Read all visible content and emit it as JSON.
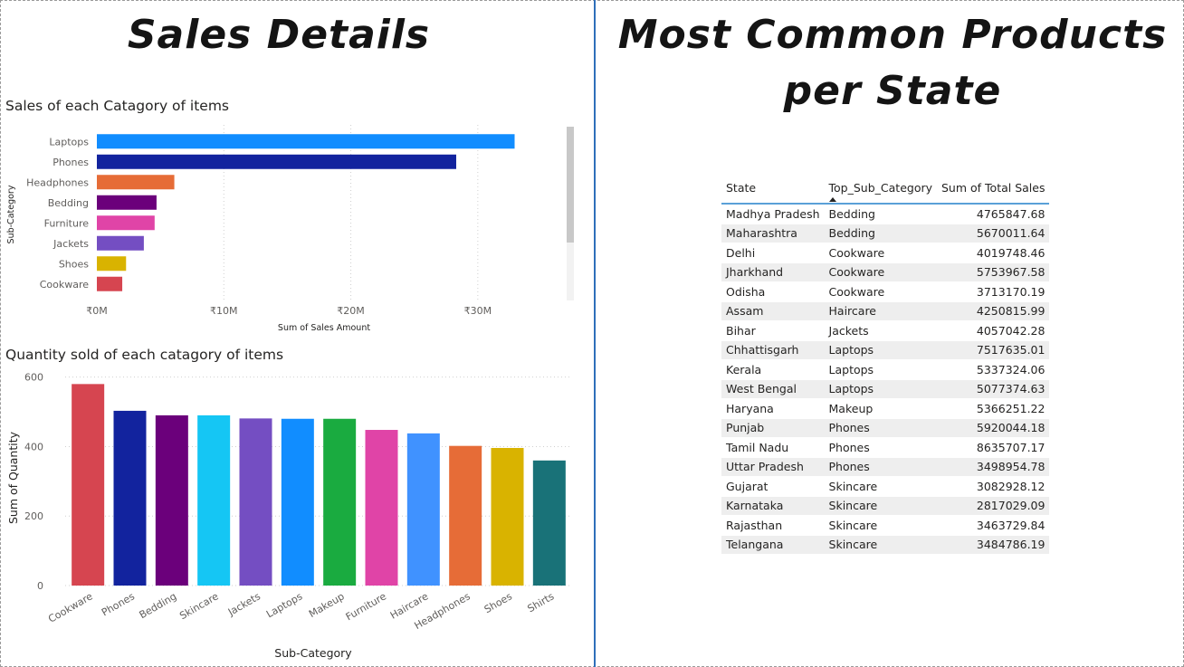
{
  "left_panel": {
    "title": "Sales Details"
  },
  "right_panel": {
    "title": "Most Common Products per State"
  },
  "chart_data": [
    {
      "type": "bar",
      "orientation": "horizontal",
      "title": "Sales of each Catagory of items",
      "xlabel": "Sum of Sales Amount",
      "ylabel": "Sub-Category",
      "categories": [
        "Laptops",
        "Phones",
        "Headphones",
        "Bedding",
        "Furniture",
        "Jackets",
        "Shoes",
        "Cookware"
      ],
      "values": [
        32900000,
        28300000,
        6100000,
        4700000,
        4550000,
        3700000,
        2300000,
        2000000
      ],
      "colors": [
        "#118DFF",
        "#12239E",
        "#E66C37",
        "#6B007B",
        "#E044A7",
        "#744EC2",
        "#D9B300",
        "#D64550"
      ],
      "xlim": [
        0,
        36000000
      ],
      "xticks": [
        0,
        10000000,
        20000000,
        30000000
      ],
      "xtick_labels": [
        "₹0M",
        "₹10M",
        "₹20M",
        "₹30M"
      ],
      "grid": true,
      "legend": "none"
    },
    {
      "type": "bar",
      "orientation": "vertical",
      "title": "Quantity sold of each catagory of items",
      "xlabel": "Sub-Category",
      "ylabel": "Sum of Quantity",
      "categories": [
        "Cookware",
        "Phones",
        "Bedding",
        "Skincare",
        "Jackets",
        "Laptops",
        "Makeup",
        "Furniture",
        "Haircare",
        "Headphones",
        "Shoes",
        "Shirts"
      ],
      "values": [
        580,
        503,
        490,
        490,
        481,
        480,
        480,
        448,
        438,
        402,
        396,
        360
      ],
      "colors": [
        "#D64550",
        "#12239E",
        "#6B007B",
        "#15C6F4",
        "#744EC2",
        "#118DFF",
        "#1AAB40",
        "#E044A7",
        "#4092FF",
        "#E66C37",
        "#D9B300",
        "#197278"
      ],
      "ylim": [
        0,
        620
      ],
      "yticks": [
        0,
        200,
        400,
        600
      ],
      "ytick_labels": [
        "0",
        "200",
        "400",
        "600"
      ],
      "grid": true,
      "legend": "none"
    },
    {
      "type": "table",
      "columns": [
        "State",
        "Top_Sub_Category",
        "Sum of Total Sales"
      ],
      "sorted_column": "Top_Sub_Category",
      "rows": [
        [
          "Madhya Pradesh",
          "Bedding",
          "4765847.68"
        ],
        [
          "Maharashtra",
          "Bedding",
          "5670011.64"
        ],
        [
          "Delhi",
          "Cookware",
          "4019748.46"
        ],
        [
          "Jharkhand",
          "Cookware",
          "5753967.58"
        ],
        [
          "Odisha",
          "Cookware",
          "3713170.19"
        ],
        [
          "Assam",
          "Haircare",
          "4250815.99"
        ],
        [
          "Bihar",
          "Jackets",
          "4057042.28"
        ],
        [
          "Chhattisgarh",
          "Laptops",
          "7517635.01"
        ],
        [
          "Kerala",
          "Laptops",
          "5337324.06"
        ],
        [
          "West Bengal",
          "Laptops",
          "5077374.63"
        ],
        [
          "Haryana",
          "Makeup",
          "5366251.22"
        ],
        [
          "Punjab",
          "Phones",
          "5920044.18"
        ],
        [
          "Tamil Nadu",
          "Phones",
          "8635707.17"
        ],
        [
          "Uttar Pradesh",
          "Phones",
          "3498954.78"
        ],
        [
          "Gujarat",
          "Skincare",
          "3082928.12"
        ],
        [
          "Karnataka",
          "Skincare",
          "2817029.09"
        ],
        [
          "Rajasthan",
          "Skincare",
          "3463729.84"
        ],
        [
          "Telangana",
          "Skincare",
          "3484786.19"
        ]
      ]
    }
  ],
  "colors": {
    "divider": "#2f6fba",
    "table_header_rule": "#5aa0d8",
    "table_stripe": "#eeeeee",
    "gridline": "#d0d0d0",
    "scrollbar_thumb": "#c8c8c8",
    "scrollbar_track": "#f2f2f2"
  },
  "icons": {
    "sort_indicator": "sort-ascending-icon"
  }
}
